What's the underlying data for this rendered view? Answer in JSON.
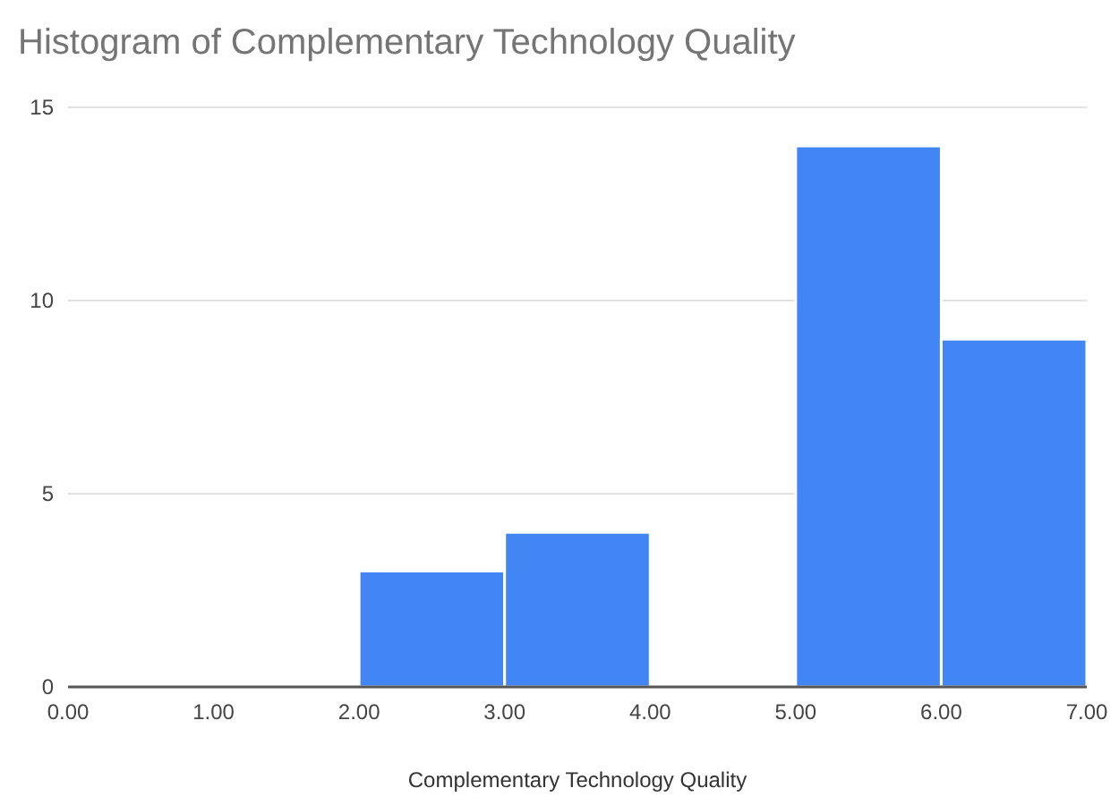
{
  "chart_data": {
    "type": "histogram",
    "title": "Histogram of Complementary Technology Quality",
    "xlabel": "Complementary Technology Quality",
    "bins": [
      0,
      1,
      2,
      3,
      4,
      5,
      6,
      7
    ],
    "values": [
      0,
      0,
      3,
      4,
      0,
      14,
      9
    ],
    "color": "#4285f4",
    "xlim": [
      0,
      7
    ],
    "xticks": [
      {
        "value": 0,
        "label": "0.00"
      },
      {
        "value": 1,
        "label": "1.00"
      },
      {
        "value": 2,
        "label": "2.00"
      },
      {
        "value": 3,
        "label": "3.00"
      },
      {
        "value": 4,
        "label": "4.00"
      },
      {
        "value": 5,
        "label": "5.00"
      },
      {
        "value": 6,
        "label": "6.00"
      },
      {
        "value": 7,
        "label": "7.00"
      }
    ],
    "ylim": [
      0,
      15
    ],
    "yticks": [
      0,
      5,
      10,
      15
    ],
    "grid": "y"
  }
}
